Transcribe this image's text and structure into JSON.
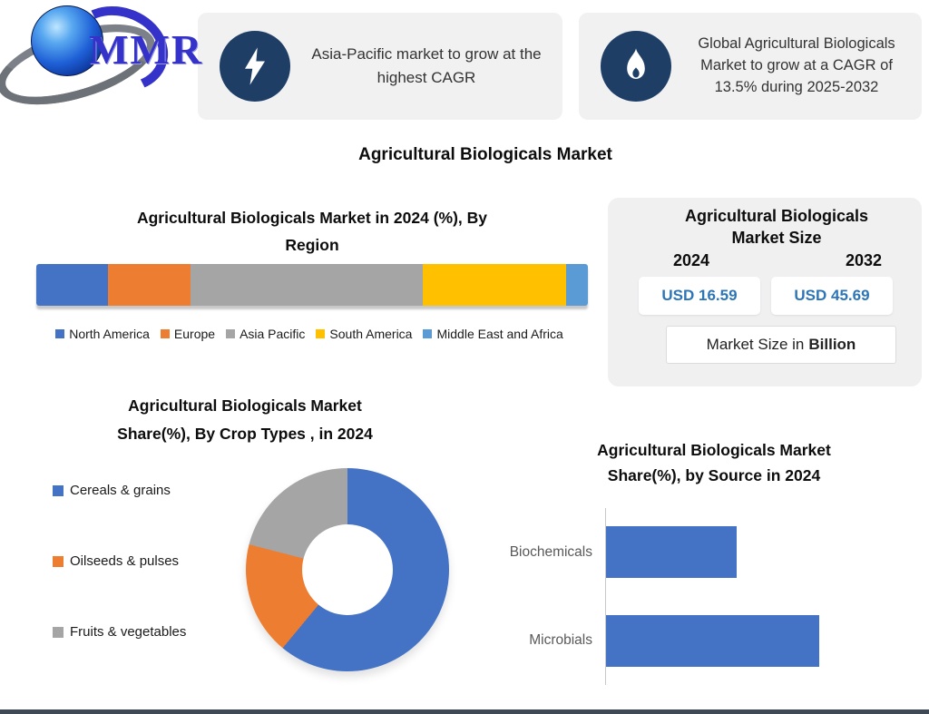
{
  "page": {
    "background": "#ffffff",
    "footer_bar_color": "#3f4956"
  },
  "brand": {
    "logo_text": "MMR",
    "logo_color": "#3432c8"
  },
  "callouts": [
    {
      "icon": "lightning-icon",
      "icon_bg": "#1f3e66",
      "text": "Asia-Pacific market to grow at the highest CAGR"
    },
    {
      "icon": "flame-icon",
      "icon_bg": "#1f3e66",
      "text": "Global Agricultural Biologicals Market to grow at a CAGR of 13.5% during 2025-2032"
    }
  ],
  "main_title": "Agricultural Biologicals Market",
  "market_size_panel": {
    "title_lines": [
      "Agricultural Biologicals",
      "Market Size"
    ],
    "year_left": "2024",
    "year_right": "2032",
    "value_left": "USD 16.59",
    "value_right": "USD 45.69",
    "value_color": "#2e75b6",
    "note_prefix": "Market Size in",
    "note_bold": "Billion"
  },
  "chart_data": [
    {
      "type": "bar",
      "subtype": "stacked-horizontal-single-bar",
      "title": "Agricultural Biologicals Market in 2024 (%), By Region",
      "title_lines": [
        "Agricultural Biologicals Market in 2024 (%), By",
        "Region"
      ],
      "unit": "%",
      "series": [
        {
          "name": "North America",
          "value": 13,
          "color": "#4472C4"
        },
        {
          "name": "Europe",
          "value": 15,
          "color": "#ED7D31"
        },
        {
          "name": "Asia Pacific",
          "value": 42,
          "color": "#A5A5A5"
        },
        {
          "name": "South America",
          "value": 26,
          "color": "#FFC000"
        },
        {
          "name": "Middle East and Africa",
          "value": 4,
          "color": "#5B9BD5"
        }
      ],
      "legend_position": "bottom"
    },
    {
      "type": "pie",
      "subtype": "donut",
      "title": "Agricultural Biologicals Market Share(%), By Crop Types , in 2024",
      "title_lines": [
        "Agricultural Biologicals Market",
        "Share(%), By Crop Types , in 2024"
      ],
      "unit": "%",
      "start_angle_deg": 0,
      "hole_ratio": 0.45,
      "legend_position": "left",
      "slices": [
        {
          "name": "Cereals & grains",
          "value": 61,
          "color": "#4472C4"
        },
        {
          "name": "Oilseeds & pulses",
          "value": 18,
          "color": "#ED7D31"
        },
        {
          "name": "Fruits & vegetables",
          "value": 21,
          "color": "#A5A5A5"
        }
      ]
    },
    {
      "type": "bar",
      "subtype": "horizontal",
      "title": "Agricultural Biologicals Market Share(%), by Source  in 2024",
      "title_lines": [
        "Agricultural Biologicals Market",
        "Share(%), by Source  in 2024"
      ],
      "unit": "%",
      "categories": [
        "Biochemicals",
        "Microbials"
      ],
      "values": [
        38,
        62
      ],
      "bar_color": "#4472C4",
      "xlim": [
        0,
        85
      ],
      "grid": false,
      "legend_position": "none"
    }
  ]
}
